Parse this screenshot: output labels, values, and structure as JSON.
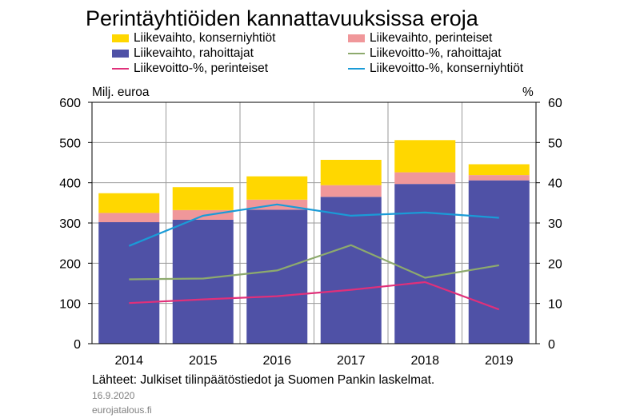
{
  "chart_data": {
    "type": "bar",
    "title": "Perintäyhtiöiden kannattavuuksissa eroja",
    "ylabel": "Milj. euroa",
    "y2label": "%",
    "ylim": [
      0,
      600
    ],
    "y2lim": [
      0,
      60
    ],
    "yticks": [
      "0",
      "100",
      "200",
      "300",
      "400",
      "500",
      "600"
    ],
    "y2ticks": [
      "0",
      "10",
      "20",
      "30",
      "40",
      "50",
      "60"
    ],
    "categories": [
      "2014",
      "2015",
      "2016",
      "2017",
      "2018",
      "2019"
    ],
    "grid": true,
    "legend_position": "top",
    "series": [
      {
        "name": "Liikevaihto, rahoittajat",
        "kind": "bar",
        "stack": "a",
        "axis": "left",
        "color": "#4F51A6",
        "values": [
          302,
          308,
          333,
          365,
          397,
          406
        ]
      },
      {
        "name": "Liikevaihto, perinteiset",
        "kind": "bar",
        "stack": "a",
        "axis": "left",
        "color": "#F0979A",
        "values": [
          23,
          24,
          25,
          29,
          29,
          13
        ]
      },
      {
        "name": "Liikevaihto, konserniyhtiöt",
        "kind": "bar",
        "stack": "a",
        "axis": "left",
        "color": "#FFD700",
        "values": [
          49,
          57,
          58,
          63,
          80,
          27
        ]
      },
      {
        "name": "Liikevoitto-%, rahoittajat",
        "kind": "line",
        "axis": "right",
        "color": "#8DAA6D",
        "values": [
          16,
          16.2,
          18.2,
          24.5,
          16.4,
          19.5
        ]
      },
      {
        "name": "Liikevoitto-%, perinteiset",
        "kind": "line",
        "axis": "right",
        "color": "#E0307A",
        "values": [
          10.1,
          11,
          11.8,
          13.4,
          15.3,
          8.5
        ]
      },
      {
        "name": "Liikevoitto-%, konserniyhtiöt",
        "kind": "line",
        "axis": "right",
        "color": "#1A9BD7",
        "values": [
          24.3,
          31.8,
          34.6,
          31.8,
          32.6,
          31.3
        ]
      }
    ],
    "legend_order": [
      "Liikevaihto, konserniyhtiöt",
      "Liikevaihto, perinteiset",
      "Liikevaihto, rahoittajat",
      "Liikevoitto-%, rahoittajat",
      "Liikevoitto-%, perinteiset",
      "Liikevoitto-%, konserniyhtiöt"
    ]
  },
  "footer": {
    "source": "Lähteet: Julkiset tilinpäätöstiedot ja Suomen Pankin laskelmat.",
    "date": "16.9.2020",
    "site": "eurojatalous.fi"
  }
}
